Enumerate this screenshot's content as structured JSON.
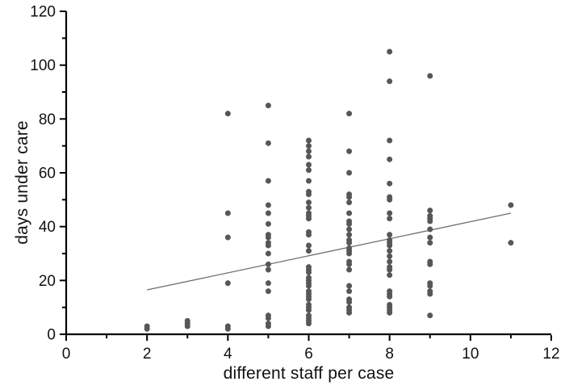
{
  "figure": {
    "background_color": "#ffffff",
    "axis_color": "#000000",
    "tick_label_color": "#111111"
  },
  "chart_data": {
    "type": "scatter",
    "title": "",
    "xlabel": "different staff per case",
    "ylabel": "days under care",
    "xlim": [
      0,
      12
    ],
    "ylim": [
      0,
      120
    ],
    "x_major_ticks": [
      0,
      2,
      4,
      6,
      8,
      10,
      12
    ],
    "y_major_ticks": [
      0,
      20,
      40,
      60,
      80,
      100,
      120
    ],
    "x_minor_step": 1,
    "y_minor_step": 10,
    "grid": false,
    "legend": false,
    "marker_color": "#575757",
    "marker_radius": 3.5,
    "trend_line": {
      "x1": 2,
      "y1": 16.5,
      "x2": 11,
      "y2": 45,
      "color": "#6e6e6e"
    },
    "points": [
      [
        2,
        3
      ],
      [
        2,
        2
      ],
      [
        3,
        5
      ],
      [
        3,
        4
      ],
      [
        3,
        3
      ],
      [
        4,
        82
      ],
      [
        4,
        45
      ],
      [
        4,
        36
      ],
      [
        4,
        19
      ],
      [
        4,
        3
      ],
      [
        4,
        2
      ],
      [
        5,
        85
      ],
      [
        5,
        71
      ],
      [
        5,
        57
      ],
      [
        5,
        48
      ],
      [
        5,
        45
      ],
      [
        5,
        41
      ],
      [
        5,
        37
      ],
      [
        5,
        36
      ],
      [
        5,
        34
      ],
      [
        5,
        33
      ],
      [
        5,
        30
      ],
      [
        5,
        26
      ],
      [
        5,
        24
      ],
      [
        5,
        19
      ],
      [
        5,
        16
      ],
      [
        5,
        7
      ],
      [
        5,
        6
      ],
      [
        5,
        4
      ],
      [
        5,
        3
      ],
      [
        6,
        72
      ],
      [
        6,
        70
      ],
      [
        6,
        68
      ],
      [
        6,
        66
      ],
      [
        6,
        63
      ],
      [
        6,
        61
      ],
      [
        6,
        57
      ],
      [
        6,
        53
      ],
      [
        6,
        52
      ],
      [
        6,
        49
      ],
      [
        6,
        47
      ],
      [
        6,
        45
      ],
      [
        6,
        44
      ],
      [
        6,
        43
      ],
      [
        6,
        38
      ],
      [
        6,
        37
      ],
      [
        6,
        33
      ],
      [
        6,
        31
      ],
      [
        6,
        25
      ],
      [
        6,
        24
      ],
      [
        6,
        23
      ],
      [
        6,
        21
      ],
      [
        6,
        20
      ],
      [
        6,
        19
      ],
      [
        6,
        18
      ],
      [
        6,
        16
      ],
      [
        6,
        15
      ],
      [
        6,
        14
      ],
      [
        6,
        13
      ],
      [
        6,
        11
      ],
      [
        6,
        10
      ],
      [
        6,
        9
      ],
      [
        6,
        7
      ],
      [
        6,
        6
      ],
      [
        6,
        5
      ],
      [
        6,
        4
      ],
      [
        7,
        82
      ],
      [
        7,
        68
      ],
      [
        7,
        60
      ],
      [
        7,
        52
      ],
      [
        7,
        51
      ],
      [
        7,
        49
      ],
      [
        7,
        45
      ],
      [
        7,
        42
      ],
      [
        7,
        41
      ],
      [
        7,
        39
      ],
      [
        7,
        37
      ],
      [
        7,
        35
      ],
      [
        7,
        34
      ],
      [
        7,
        32
      ],
      [
        7,
        31
      ],
      [
        7,
        30
      ],
      [
        7,
        27
      ],
      [
        7,
        26
      ],
      [
        7,
        24
      ],
      [
        7,
        18
      ],
      [
        7,
        16
      ],
      [
        7,
        13
      ],
      [
        7,
        12
      ],
      [
        7,
        10
      ],
      [
        7,
        9
      ],
      [
        7,
        8
      ],
      [
        8,
        105
      ],
      [
        8,
        94
      ],
      [
        8,
        72
      ],
      [
        8,
        65
      ],
      [
        8,
        56
      ],
      [
        8,
        51
      ],
      [
        8,
        50
      ],
      [
        8,
        45
      ],
      [
        8,
        43
      ],
      [
        8,
        37
      ],
      [
        8,
        35
      ],
      [
        8,
        34
      ],
      [
        8,
        33
      ],
      [
        8,
        31
      ],
      [
        8,
        29
      ],
      [
        8,
        27
      ],
      [
        8,
        25
      ],
      [
        8,
        24
      ],
      [
        8,
        22
      ],
      [
        8,
        16
      ],
      [
        8,
        15
      ],
      [
        8,
        14
      ],
      [
        8,
        11
      ],
      [
        8,
        10
      ],
      [
        8,
        9
      ],
      [
        8,
        8
      ],
      [
        9,
        96
      ],
      [
        9,
        46
      ],
      [
        9,
        44
      ],
      [
        9,
        43
      ],
      [
        9,
        42
      ],
      [
        9,
        39
      ],
      [
        9,
        36
      ],
      [
        9,
        34
      ],
      [
        9,
        27
      ],
      [
        9,
        26
      ],
      [
        9,
        19
      ],
      [
        9,
        18
      ],
      [
        9,
        16
      ],
      [
        9,
        15
      ],
      [
        9,
        7
      ],
      [
        11,
        48
      ],
      [
        11,
        34
      ]
    ]
  }
}
